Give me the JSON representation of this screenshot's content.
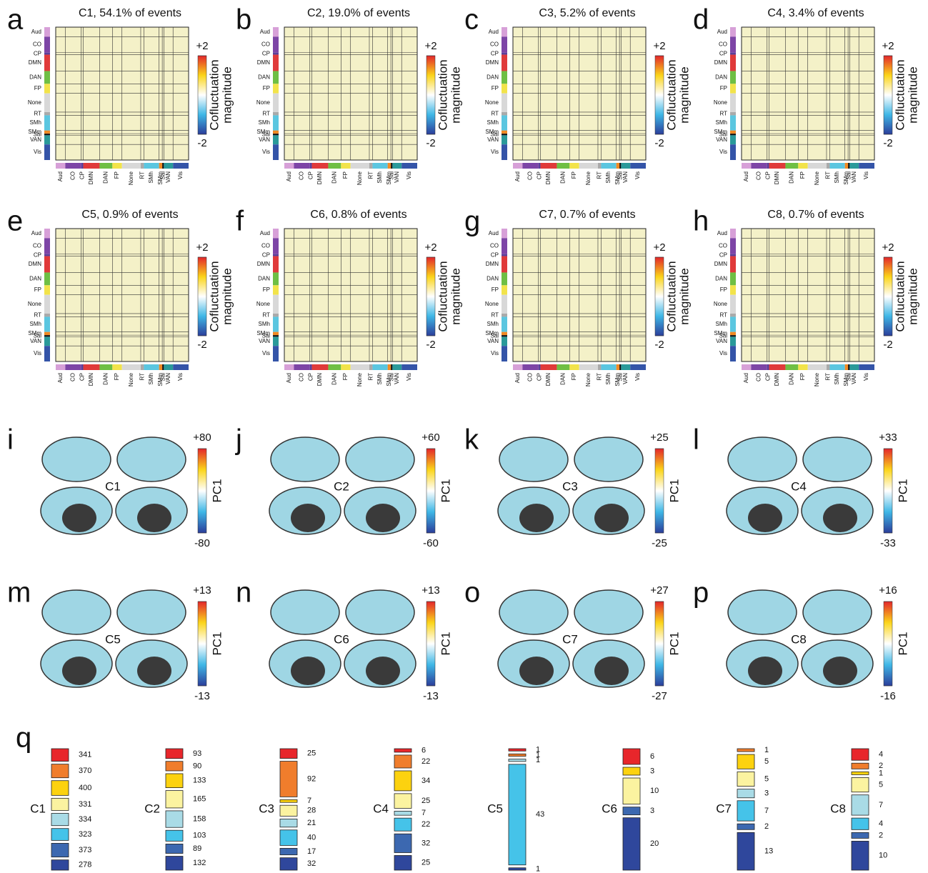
{
  "networks": [
    {
      "name": "Aud",
      "color": "#d7a0d8"
    },
    {
      "name": "CO",
      "color": "#7d45a6"
    },
    {
      "name": "CP",
      "color": "#5a3f9a"
    },
    {
      "name": "DMN",
      "color": "#e03a3a"
    },
    {
      "name": "DAN",
      "color": "#6fbf44"
    },
    {
      "name": "FP",
      "color": "#f2e34a"
    },
    {
      "name": "None",
      "color": "#d8d8d8"
    },
    {
      "name": "RT",
      "color": "#aaaaaa"
    },
    {
      "name": "SMh",
      "color": "#5bc6e0"
    },
    {
      "name": "SMm",
      "color": "#f08a24"
    },
    {
      "name": "Sal",
      "color": "#111111"
    },
    {
      "name": "VAN",
      "color": "#2a9a9a"
    },
    {
      "name": "Vis",
      "color": "#3454a8"
    }
  ],
  "matrix_panels": [
    {
      "letter": "a",
      "title": "C1, 54.1% of events",
      "cbar_ticks": [
        {
          "value": 2,
          "label": "+2"
        },
        {
          "value": -2,
          "label": "-2"
        }
      ],
      "cbar_label": [
        "Cofluctuation",
        "magnitude"
      ]
    },
    {
      "letter": "b",
      "title": "C2, 19.0% of events",
      "cbar_ticks": [
        {
          "value": 2,
          "label": "+2"
        },
        {
          "value": -2,
          "label": "-2"
        }
      ],
      "cbar_label": [
        "Cofluctuation",
        "magnitude"
      ]
    },
    {
      "letter": "c",
      "title": "C3, 5.2% of events",
      "cbar_ticks": [
        {
          "value": 2,
          "label": "+2"
        },
        {
          "value": -2,
          "label": "-2"
        }
      ],
      "cbar_label": [
        "Cofluctuation",
        "magnitude"
      ]
    },
    {
      "letter": "d",
      "title": "C4, 3.4% of events",
      "cbar_ticks": [
        {
          "value": 2,
          "label": "+2"
        },
        {
          "value": -2,
          "label": "-2"
        }
      ],
      "cbar_label": [
        "Cofluctuation",
        "magnitude"
      ]
    },
    {
      "letter": "e",
      "title": "C5, 0.9% of events",
      "cbar_ticks": [
        {
          "value": 2,
          "label": "+2"
        },
        {
          "value": -2,
          "label": "-2"
        }
      ],
      "cbar_label": [
        "Cofluctuation",
        "magnitude"
      ]
    },
    {
      "letter": "f",
      "title": "C6, 0.8% of events",
      "cbar_ticks": [
        {
          "value": 2,
          "label": "+2"
        },
        {
          "value": -2,
          "label": "-2"
        }
      ],
      "cbar_label": [
        "Cofluctuation",
        "magnitude"
      ]
    },
    {
      "letter": "g",
      "title": "C7, 0.7% of events",
      "cbar_ticks": [
        {
          "value": 2,
          "label": "+2"
        },
        {
          "value": -2,
          "label": "-2"
        }
      ],
      "cbar_label": [
        "Cofluctuation",
        "magnitude"
      ]
    },
    {
      "letter": "h",
      "title": "C8, 0.7% of events",
      "cbar_ticks": [
        {
          "value": 2,
          "label": "+2"
        },
        {
          "value": -2,
          "label": "-2"
        }
      ],
      "cbar_label": [
        "Cofluctuation",
        "magnitude"
      ]
    }
  ],
  "brain_panels": [
    {
      "letter": "i",
      "name": "C1",
      "cbar_ticks": [
        {
          "value": 80,
          "label": "+80"
        },
        {
          "value": -80,
          "label": "-80"
        }
      ],
      "cbar_label": "PC1"
    },
    {
      "letter": "j",
      "name": "C2",
      "cbar_ticks": [
        {
          "value": 60,
          "label": "+60"
        },
        {
          "value": -60,
          "label": "-60"
        }
      ],
      "cbar_label": "PC1"
    },
    {
      "letter": "k",
      "name": "C3",
      "cbar_ticks": [
        {
          "value": 25,
          "label": "+25"
        },
        {
          "value": -25,
          "label": "-25"
        }
      ],
      "cbar_label": "PC1"
    },
    {
      "letter": "l",
      "name": "C4",
      "cbar_ticks": [
        {
          "value": 33,
          "label": "+33"
        },
        {
          "value": -33,
          "label": "-33"
        }
      ],
      "cbar_label": "PC1"
    },
    {
      "letter": "m",
      "name": "C5",
      "cbar_ticks": [
        {
          "value": 13,
          "label": "+13"
        },
        {
          "value": -13,
          "label": "-13"
        }
      ],
      "cbar_label": "PC1"
    },
    {
      "letter": "n",
      "name": "C6",
      "cbar_ticks": [
        {
          "value": 13,
          "label": "+13"
        },
        {
          "value": -13,
          "label": "-13"
        }
      ],
      "cbar_label": "PC1"
    },
    {
      "letter": "o",
      "name": "C7",
      "cbar_ticks": [
        {
          "value": 27,
          "label": "+27"
        },
        {
          "value": -27,
          "label": "-27"
        }
      ],
      "cbar_label": "PC1"
    },
    {
      "letter": "p",
      "name": "C8",
      "cbar_ticks": [
        {
          "value": 16,
          "label": "+16"
        },
        {
          "value": -16,
          "label": "-16"
        }
      ],
      "cbar_label": "PC1"
    }
  ],
  "q": {
    "letter": "q",
    "groups": [
      {
        "name": "C1",
        "values": [
          341,
          370,
          400,
          331,
          334,
          323,
          373,
          278
        ],
        "colors": [
          "#e8262b",
          "#f07d2c",
          "#fcd20f",
          "#fbf3a0",
          "#a9dbe6",
          "#45c3e9",
          "#3c68b0",
          "#2f479c"
        ]
      },
      {
        "name": "C2",
        "values": [
          93,
          90,
          133,
          165,
          158,
          103,
          89,
          132
        ],
        "colors": [
          "#e8262b",
          "#f07d2c",
          "#fcd20f",
          "#fbf3a0",
          "#a9dbe6",
          "#45c3e9",
          "#3c68b0",
          "#2f479c"
        ]
      },
      {
        "name": "C3",
        "values": [
          25,
          92,
          7,
          28,
          21,
          40,
          17,
          32
        ],
        "colors": [
          "#e8262b",
          "#f07d2c",
          "#fcd20f",
          "#fbf3a0",
          "#a9dbe6",
          "#45c3e9",
          "#3c68b0",
          "#2f479c"
        ]
      },
      {
        "name": "C4",
        "values": [
          6,
          22,
          34,
          25,
          7,
          22,
          32,
          25
        ],
        "colors": [
          "#e8262b",
          "#f07d2c",
          "#fcd20f",
          "#fbf3a0",
          "#a9dbe6",
          "#45c3e9",
          "#3c68b0",
          "#2f479c"
        ]
      },
      {
        "name": "C5",
        "values": [
          1,
          1,
          1,
          43,
          1
        ],
        "colors": [
          "#e8262b",
          "#f07d2c",
          "#a9dbe6",
          "#45c3e9",
          "#2f479c"
        ]
      },
      {
        "name": "C6",
        "values": [
          6,
          3,
          10,
          3,
          20
        ],
        "colors": [
          "#e8262b",
          "#fcd20f",
          "#fbf3a0",
          "#3c68b0",
          "#2f479c"
        ]
      },
      {
        "name": "C7",
        "values": [
          1,
          5,
          5,
          3,
          7,
          2,
          13
        ],
        "colors": [
          "#f07d2c",
          "#fcd20f",
          "#fbf3a0",
          "#a9dbe6",
          "#45c3e9",
          "#3c68b0",
          "#2f479c"
        ]
      },
      {
        "name": "C8",
        "values": [
          4,
          2,
          1,
          5,
          7,
          4,
          2,
          10
        ],
        "colors": [
          "#e8262b",
          "#f07d2c",
          "#fcd20f",
          "#fbf3a0",
          "#a9dbe6",
          "#45c3e9",
          "#3c68b0",
          "#2f479c"
        ]
      }
    ]
  }
}
